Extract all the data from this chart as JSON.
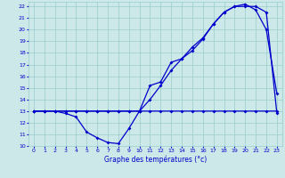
{
  "title": "Graphe des températures (°c)",
  "bg_color": "#cce8e8",
  "line_color": "#0000cc",
  "grid_color": "#99cccc",
  "xlim": [
    -0.5,
    23.5
  ],
  "ylim": [
    10,
    22.4
  ],
  "xticks": [
    0,
    1,
    2,
    3,
    4,
    5,
    6,
    7,
    8,
    9,
    10,
    11,
    12,
    13,
    14,
    15,
    16,
    17,
    18,
    19,
    20,
    21,
    22,
    23
  ],
  "yticks": [
    10,
    11,
    12,
    13,
    14,
    15,
    16,
    17,
    18,
    19,
    20,
    21,
    22
  ],
  "line1_x": [
    0,
    1,
    2,
    3,
    4,
    5,
    6,
    7,
    8,
    9,
    10,
    11,
    12,
    13,
    14,
    15,
    16,
    17,
    18,
    19,
    20,
    21,
    22,
    23
  ],
  "line1_y": [
    13,
    13,
    13,
    12.8,
    12.5,
    11.2,
    10.7,
    10.3,
    10.2,
    11.5,
    13,
    13,
    13,
    13,
    13,
    13,
    13,
    13,
    13,
    13,
    13,
    13,
    13,
    13
  ],
  "line2_x": [
    0,
    1,
    2,
    3,
    4,
    5,
    6,
    7,
    8,
    9,
    10,
    11,
    12,
    13,
    14,
    15,
    16,
    17,
    18,
    19,
    20,
    21,
    22,
    23
  ],
  "line2_y": [
    13,
    13,
    13,
    13,
    13,
    13,
    13,
    13,
    13,
    13,
    13,
    14,
    15.2,
    16.5,
    17.5,
    18.5,
    19.3,
    20.5,
    21.5,
    22,
    22,
    22,
    21.5,
    12.8
  ],
  "line3_x": [
    0,
    1,
    2,
    3,
    4,
    5,
    6,
    7,
    8,
    9,
    10,
    11,
    12,
    13,
    14,
    15,
    16,
    17,
    18,
    19,
    20,
    21,
    22,
    23
  ],
  "line3_y": [
    13,
    13,
    13,
    13,
    13,
    13,
    13,
    13,
    13,
    13,
    13,
    15.2,
    15.5,
    17.2,
    17.5,
    18.2,
    19.2,
    20.5,
    21.5,
    22,
    22.2,
    21.7,
    20,
    14.5
  ],
  "tick_fontsize": 4.5,
  "xlabel_fontsize": 5.5
}
